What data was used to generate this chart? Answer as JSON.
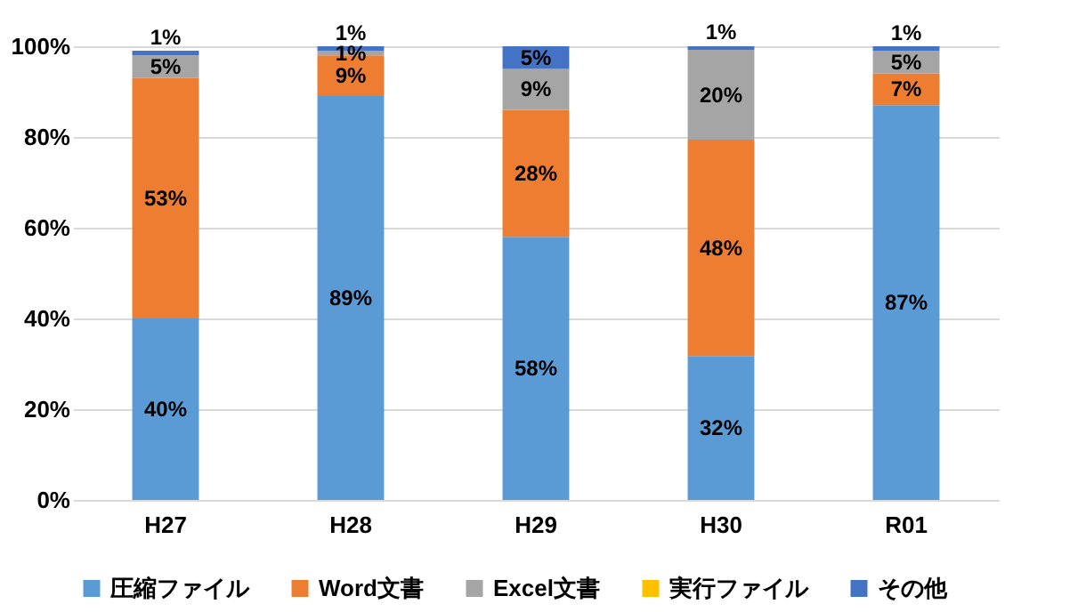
{
  "chart_data": {
    "type": "bar",
    "stacked": true,
    "categories": [
      "H27",
      "H28",
      "H29",
      "H30",
      "R01"
    ],
    "series": [
      {
        "name": "圧縮ファイル",
        "color": "#5b9bd5",
        "values": [
          40,
          89,
          58,
          31.7,
          87
        ],
        "value_labels": [
          "40%",
          "89%",
          "58%",
          "32%",
          "87%"
        ]
      },
      {
        "name": "Word文書",
        "color": "#ed7d31",
        "values": [
          53,
          9,
          28,
          47.7,
          7
        ],
        "value_labels": [
          "53%",
          "9%",
          "28%",
          "48%",
          "7%"
        ]
      },
      {
        "name": "Excel文書",
        "color": "#a5a5a5",
        "values": [
          5,
          1,
          9,
          19.8,
          5
        ],
        "value_labels": [
          "5%",
          "1%",
          "9%",
          "20%",
          "5%"
        ]
      },
      {
        "name": "実行ファイル",
        "color": "#ffc000",
        "values": [
          0,
          0,
          0,
          0,
          0
        ],
        "value_labels": [
          null,
          null,
          null,
          null,
          null
        ]
      },
      {
        "name": "その他",
        "color": "#4472c4",
        "values": [
          1,
          1,
          5,
          0.8,
          1
        ],
        "value_labels": [
          "1%",
          "1%",
          "5%",
          "1%",
          "1%"
        ]
      }
    ],
    "ylim": [
      0,
      100
    ],
    "yticks": [
      {
        "value": 0,
        "label": "0%"
      },
      {
        "value": 20,
        "label": "20%"
      },
      {
        "value": 40,
        "label": "40%"
      },
      {
        "value": 60,
        "label": "60%"
      },
      {
        "value": 80,
        "label": "80%"
      },
      {
        "value": 100,
        "label": "100%"
      }
    ],
    "grid": "y",
    "legend": "bottom"
  }
}
